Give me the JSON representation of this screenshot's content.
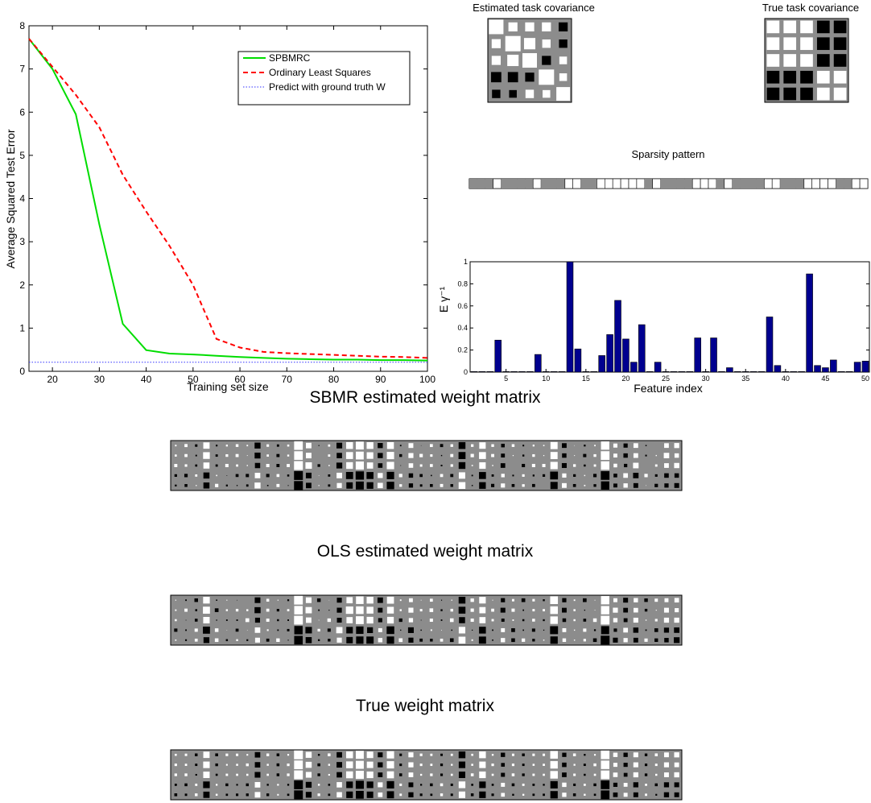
{
  "chart_data": [
    {
      "type": "line",
      "id": "error_curve",
      "xlabel": "Training set size",
      "ylabel": "Average Squared Test Error",
      "xlim": [
        15,
        100
      ],
      "ylim": [
        0,
        8
      ],
      "xticks": [
        20,
        30,
        40,
        50,
        60,
        70,
        80,
        90,
        100
      ],
      "yticks": [
        0,
        1,
        2,
        3,
        4,
        5,
        6,
        7,
        8
      ],
      "legend_position": "top-right",
      "grid": false,
      "series": [
        {
          "name": "SPBMRC",
          "color": "#00dd00",
          "style": "solid",
          "x": [
            15,
            20,
            25,
            30,
            35,
            40,
            45,
            50,
            55,
            60,
            65,
            70,
            75,
            80,
            85,
            90,
            95,
            100
          ],
          "y": [
            7.7,
            7.0,
            5.95,
            3.4,
            1.1,
            0.49,
            0.41,
            0.39,
            0.36,
            0.33,
            0.31,
            0.29,
            0.28,
            0.27,
            0.27,
            0.26,
            0.26,
            0.25
          ]
        },
        {
          "name": "Ordinary Least Squares",
          "color": "#ff0000",
          "style": "dashed",
          "x": [
            15,
            20,
            25,
            30,
            35,
            40,
            45,
            50,
            55,
            60,
            65,
            70,
            75,
            80,
            85,
            90,
            95,
            100
          ],
          "y": [
            7.7,
            7.05,
            6.4,
            5.65,
            4.55,
            3.7,
            2.9,
            2.0,
            0.75,
            0.55,
            0.45,
            0.42,
            0.4,
            0.38,
            0.36,
            0.34,
            0.33,
            0.31
          ]
        },
        {
          "name": "Predict with ground truth W",
          "color": "#3333ff",
          "style": "dotted",
          "x": [
            15,
            100
          ],
          "y": [
            0.21,
            0.21
          ]
        }
      ]
    },
    {
      "type": "heatmap",
      "id": "estimated_cov",
      "title": "Estimated task covariance",
      "rows": 5,
      "cols": 5,
      "values": [
        [
          0.9,
          0.35,
          0.35,
          0.35,
          -0.35
        ],
        [
          0.35,
          1.0,
          0.55,
          0.3,
          -0.3
        ],
        [
          0.35,
          0.55,
          0.9,
          -0.35,
          0.25
        ],
        [
          -0.45,
          -0.45,
          -0.35,
          1.0,
          0.25
        ],
        [
          -0.3,
          -0.25,
          0.3,
          0.25,
          0.8
        ]
      ]
    },
    {
      "type": "heatmap",
      "id": "true_cov",
      "title": "True task covariance",
      "rows": 5,
      "cols": 5,
      "values": [
        [
          0.85,
          0.85,
          0.85,
          -0.85,
          -0.85
        ],
        [
          0.85,
          0.85,
          0.85,
          -0.85,
          -0.85
        ],
        [
          0.85,
          0.85,
          0.85,
          -0.85,
          -0.85
        ],
        [
          -0.85,
          -0.85,
          -0.85,
          0.85,
          0.85
        ],
        [
          -0.85,
          -0.85,
          -0.85,
          0.85,
          0.85
        ]
      ]
    },
    {
      "type": "heatmap",
      "id": "sparsity_pattern",
      "title": "Sparsity pattern",
      "rows": 1,
      "cols": 50,
      "values": [
        0,
        0,
        0,
        1,
        0,
        0,
        0,
        0,
        1,
        0,
        0,
        0,
        1,
        1,
        0,
        0,
        1,
        1,
        1,
        1,
        1,
        1,
        0,
        1,
        0,
        0,
        0,
        0,
        1,
        1,
        1,
        0,
        1,
        0,
        0,
        0,
        0,
        1,
        1,
        0,
        0,
        0,
        1,
        1,
        1,
        1,
        0,
        0,
        1,
        1
      ]
    },
    {
      "type": "bar",
      "id": "gamma_bars",
      "xlabel": "Feature index",
      "ylabel": "E γ⁻¹",
      "color": "#00008f",
      "xlim": [
        0.5,
        50.5
      ],
      "ylim": [
        0,
        1
      ],
      "xticks": [
        5,
        10,
        15,
        20,
        25,
        30,
        35,
        40,
        45,
        50
      ],
      "yticks": [
        0,
        0.2,
        0.4,
        0.6,
        0.8,
        1
      ],
      "ytick_labels": [
        "0",
        "0.2",
        "0.4",
        "0.6",
        "0.8",
        "1"
      ],
      "categories": [
        1,
        2,
        3,
        4,
        5,
        6,
        7,
        8,
        9,
        10,
        11,
        12,
        13,
        14,
        15,
        16,
        17,
        18,
        19,
        20,
        21,
        22,
        23,
        24,
        25,
        26,
        27,
        28,
        29,
        30,
        31,
        32,
        33,
        34,
        35,
        36,
        37,
        38,
        39,
        40,
        41,
        42,
        43,
        44,
        45,
        46,
        47,
        48,
        49,
        50
      ],
      "values": [
        0.005,
        0.005,
        0.005,
        0.29,
        0.005,
        0.005,
        0.005,
        0.005,
        0.16,
        0.005,
        0.005,
        0.005,
        1.0,
        0.21,
        0.005,
        0.005,
        0.15,
        0.34,
        0.65,
        0.3,
        0.09,
        0.43,
        0.005,
        0.09,
        0.005,
        0.005,
        0.005,
        0.005,
        0.31,
        0.005,
        0.31,
        0.005,
        0.04,
        0.005,
        0.005,
        0.005,
        0.005,
        0.5,
        0.06,
        0.005,
        0.005,
        0.005,
        0.89,
        0.06,
        0.04,
        0.11,
        0.005,
        0.005,
        0.09,
        0.1
      ]
    },
    {
      "type": "heatmap",
      "id": "sbmr_matrix",
      "title": "SBMR estimated weight matrix",
      "rows": 5,
      "cols": 50,
      "seed": 17,
      "noise": 0.25
    },
    {
      "type": "heatmap",
      "id": "ols_matrix",
      "title": "OLS estimated weight matrix",
      "rows": 5,
      "cols": 50,
      "seed": 53,
      "noise": 0.4
    },
    {
      "type": "heatmap",
      "id": "true_matrix",
      "title": "True weight matrix",
      "rows": 5,
      "cols": 50,
      "seed": 91,
      "noise": 0.12
    }
  ]
}
